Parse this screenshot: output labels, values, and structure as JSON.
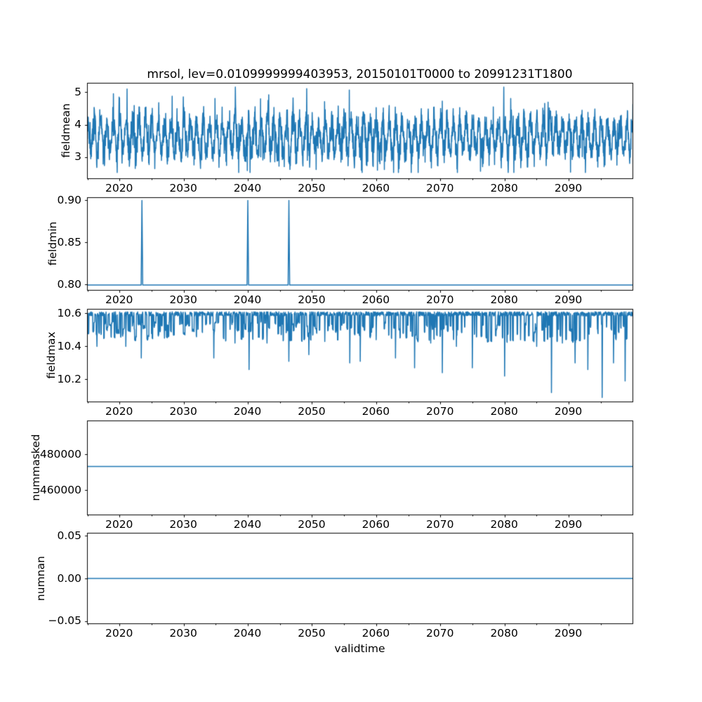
{
  "title": "mrsol, lev=0.0109999999403953, 20150101T0000 to 20991231T1800",
  "xlabel": "validtime",
  "colors": {
    "line": "#1f77b4",
    "axis": "#000000",
    "background": "#ffffff"
  },
  "x_axis": {
    "range": [
      2015,
      2100
    ],
    "major_ticks": [
      2020,
      2030,
      2040,
      2050,
      2060,
      2070,
      2080,
      2090
    ],
    "major_tick_labels": [
      "2020",
      "2030",
      "2040",
      "2050",
      "2060",
      "2070",
      "2080",
      "2090"
    ],
    "minor_ticks": [
      2015,
      2025,
      2035,
      2045,
      2055,
      2065,
      2075,
      2085,
      2095
    ]
  },
  "chart_data": [
    {
      "type": "line",
      "name": "fieldmean",
      "ylabel": "fieldmean",
      "ylim": [
        2.33,
        5.28
      ],
      "yticks": [
        {
          "v": 3,
          "label": "3"
        },
        {
          "v": 4,
          "label": "4"
        },
        {
          "v": 5,
          "label": "5"
        }
      ],
      "series": {
        "kind": "noisy_seasonal",
        "mean": 3.62,
        "seasonal_amplitude": 0.5,
        "noise_amplitude": 0.58,
        "extreme_prob": 0.035,
        "full_range": [
          2.52,
          5.16
        ],
        "n_points": 2600,
        "seed": 7,
        "description": "dense noisy 6-hourly series oscillating roughly annually between ~2.6 and ~5.1"
      }
    },
    {
      "type": "line",
      "name": "fieldmin",
      "ylabel": "fieldmin",
      "ylim": [
        0.7933,
        0.9033
      ],
      "yticks": [
        {
          "v": 0.8,
          "label": "0.80"
        },
        {
          "v": 0.85,
          "label": "0.85"
        },
        {
          "v": 0.9,
          "label": "0.90"
        }
      ],
      "series": {
        "kind": "baseline_spikes",
        "baseline": 0.7995,
        "spike_value": 0.9,
        "spike_years": [
          2023.5,
          2040.0,
          2046.4
        ],
        "description": "flat at ~0.80 with three isolated spikes to 0.90"
      }
    },
    {
      "type": "line",
      "name": "fieldmax",
      "ylabel": "fieldmax",
      "ylim": [
        10.0638,
        10.6255
      ],
      "yticks": [
        {
          "v": 10.2,
          "label": "10.2"
        },
        {
          "v": 10.4,
          "label": "10.4"
        },
        {
          "v": 10.6,
          "label": "10.6"
        }
      ],
      "series": {
        "kind": "ceiling_spikes",
        "ceiling": 10.6,
        "band": [
          10.585,
          10.61
        ],
        "shallow_depth": [
          0.05,
          0.17
        ],
        "dense_until": 2058,
        "n_points": 2400,
        "seed": 11,
        "deep_spikes": [
          [
            2016.5,
            10.4
          ],
          [
            2021.0,
            10.4
          ],
          [
            2023.4,
            10.33
          ],
          [
            2027.0,
            10.45
          ],
          [
            2034.7,
            10.33
          ],
          [
            2038.0,
            10.42
          ],
          [
            2040.2,
            10.26
          ],
          [
            2043.0,
            10.42
          ],
          [
            2046.4,
            10.31
          ],
          [
            2049.5,
            10.35
          ],
          [
            2052.0,
            10.43
          ],
          [
            2055.9,
            10.3
          ],
          [
            2057.5,
            10.31
          ],
          [
            2060.0,
            10.44
          ],
          [
            2063.0,
            10.33
          ],
          [
            2066.0,
            10.27
          ],
          [
            2068.5,
            10.42
          ],
          [
            2070.3,
            10.24
          ],
          [
            2072.5,
            10.4
          ],
          [
            2075.0,
            10.27
          ],
          [
            2077.5,
            10.43
          ],
          [
            2080.0,
            10.22
          ],
          [
            2082.5,
            10.44
          ],
          [
            2085.0,
            10.4
          ],
          [
            2087.3,
            10.12
          ],
          [
            2089.0,
            10.42
          ],
          [
            2091.0,
            10.3
          ],
          [
            2093.0,
            10.26
          ],
          [
            2095.2,
            10.09
          ],
          [
            2097.0,
            10.3
          ],
          [
            2098.8,
            10.19
          ]
        ],
        "description": "ceiling at ~10.6 with frequent shallow downward spikes and occasional deep spikes, deepest ~10.09 near 2095"
      }
    },
    {
      "type": "line",
      "name": "nummasked",
      "ylabel": "nummasked",
      "ylim": [
        446272,
        498824
      ],
      "yticks": [
        {
          "v": 460000,
          "label": "460000"
        },
        {
          "v": 480000,
          "label": "480000"
        }
      ],
      "series": {
        "kind": "constant",
        "value": 473300,
        "description": "constant line at ~473300"
      }
    },
    {
      "type": "line",
      "name": "numnan",
      "ylabel": "numnan",
      "ylim": [
        -0.0533,
        0.0533
      ],
      "yticks": [
        {
          "v": -0.05,
          "label": "−0.05"
        },
        {
          "v": 0,
          "label": "0.00"
        },
        {
          "v": 0.05,
          "label": "0.05"
        }
      ],
      "series": {
        "kind": "constant",
        "value": 0,
        "description": "constant line at 0.00"
      }
    }
  ]
}
